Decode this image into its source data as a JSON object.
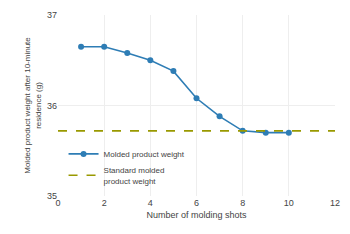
{
  "chart_data": {
    "type": "line",
    "xlabel": "Number of molding shots",
    "ylabel": "Molded product weight after 10-minute\nresidence (g)",
    "x": [
      1,
      2,
      3,
      4,
      5,
      6,
      7,
      8,
      9,
      10
    ],
    "series": [
      {
        "name": "Molded product weight",
        "color": "#2e7db5",
        "marker": "circle",
        "line_style": "solid",
        "values": [
          36.65,
          36.65,
          36.58,
          36.5,
          36.38,
          36.08,
          35.88,
          35.72,
          35.7,
          35.7
        ]
      },
      {
        "name": "Standard molded\nproduct weight",
        "type": "hline",
        "color": "#999900",
        "line_style": "dashed",
        "value": 35.72
      }
    ],
    "xlim": [
      0,
      12
    ],
    "xticks": [
      0,
      2,
      4,
      6,
      8,
      10,
      12
    ],
    "ylim": [
      35,
      37
    ],
    "yticks": [
      35,
      36,
      37
    ],
    "grid": true,
    "legend": "lower left"
  }
}
